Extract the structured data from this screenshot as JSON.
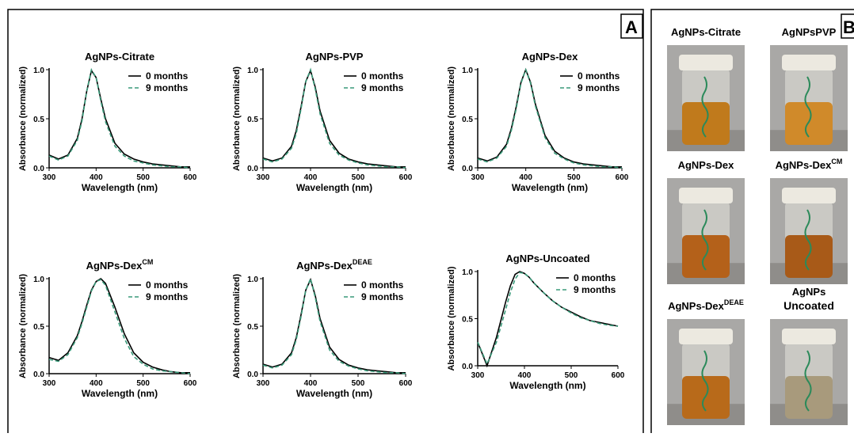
{
  "panel_a_label": "A",
  "panel_b_label": "B",
  "chart_data": [
    {
      "type": "line",
      "title": "AgNPs-Citrate",
      "x_label": "Wavelength (nm)",
      "y_label": "Absorbance (normalized)",
      "x": [
        300,
        320,
        340,
        360,
        370,
        380,
        390,
        400,
        410,
        420,
        440,
        460,
        480,
        500,
        520,
        540,
        560,
        580,
        600
      ],
      "series": [
        {
          "name": "0 months",
          "color": "#000000",
          "dashed": false,
          "values": [
            0.13,
            0.09,
            0.13,
            0.3,
            0.5,
            0.78,
            0.99,
            0.92,
            0.7,
            0.5,
            0.25,
            0.14,
            0.09,
            0.06,
            0.04,
            0.03,
            0.02,
            0.01,
            0.01
          ]
        },
        {
          "name": "9 months",
          "color": "#3a9a7a",
          "dashed": true,
          "values": [
            0.12,
            0.08,
            0.12,
            0.28,
            0.48,
            0.78,
            1.0,
            0.92,
            0.68,
            0.47,
            0.22,
            0.12,
            0.07,
            0.05,
            0.03,
            0.02,
            0.01,
            0.01,
            0.0
          ]
        }
      ],
      "xlim": [
        300,
        600
      ],
      "xticks": [
        300,
        400,
        500,
        600
      ],
      "ylim": [
        0,
        1
      ],
      "yticks": [
        {
          "value": 0,
          "label": "0.0"
        },
        {
          "value": 0.5,
          "label": "0.5"
        },
        {
          "value": 1,
          "label": "1.0"
        }
      ],
      "legend": "upper right"
    },
    {
      "type": "line",
      "title": "AgNPs-PVP",
      "x_label": "Wavelength (nm)",
      "y_label": "Absorbance (normalized)",
      "x": [
        300,
        320,
        340,
        360,
        370,
        380,
        390,
        400,
        410,
        420,
        440,
        460,
        480,
        500,
        520,
        540,
        560,
        580,
        600
      ],
      "series": [
        {
          "name": "0 months",
          "color": "#000000",
          "dashed": false,
          "values": [
            0.1,
            0.07,
            0.1,
            0.22,
            0.38,
            0.62,
            0.88,
            0.99,
            0.82,
            0.58,
            0.28,
            0.15,
            0.09,
            0.06,
            0.04,
            0.03,
            0.02,
            0.01,
            0.01
          ]
        },
        {
          "name": "9 months",
          "color": "#3a9a7a",
          "dashed": true,
          "values": [
            0.09,
            0.06,
            0.09,
            0.2,
            0.35,
            0.6,
            0.88,
            1.0,
            0.8,
            0.55,
            0.25,
            0.13,
            0.08,
            0.05,
            0.03,
            0.02,
            0.01,
            0.01,
            0.0
          ]
        }
      ],
      "xlim": [
        300,
        600
      ],
      "xticks": [
        300,
        400,
        500,
        600
      ],
      "ylim": [
        0,
        1
      ],
      "yticks": [
        {
          "value": 0,
          "label": "0.0"
        },
        {
          "value": 0.5,
          "label": "0.5"
        },
        {
          "value": 1,
          "label": "1.0"
        }
      ],
      "legend": "upper right"
    },
    {
      "type": "line",
      "title": "AgNPs-Dex",
      "x_label": "Wavelength (nm)",
      "y_label": "Absorbance (normalized)",
      "x": [
        300,
        320,
        340,
        360,
        370,
        380,
        390,
        400,
        410,
        420,
        440,
        460,
        480,
        500,
        520,
        540,
        560,
        580,
        600
      ],
      "series": [
        {
          "name": "0 months",
          "color": "#000000",
          "dashed": false,
          "values": [
            0.1,
            0.07,
            0.11,
            0.24,
            0.4,
            0.62,
            0.87,
            1.0,
            0.87,
            0.65,
            0.33,
            0.17,
            0.1,
            0.06,
            0.04,
            0.03,
            0.02,
            0.01,
            0.01
          ]
        },
        {
          "name": "9 months",
          "color": "#3a9a7a",
          "dashed": true,
          "values": [
            0.09,
            0.06,
            0.1,
            0.22,
            0.38,
            0.6,
            0.86,
            1.0,
            0.86,
            0.63,
            0.31,
            0.15,
            0.09,
            0.05,
            0.03,
            0.02,
            0.01,
            0.01,
            0.0
          ]
        }
      ],
      "xlim": [
        300,
        600
      ],
      "xticks": [
        300,
        400,
        500,
        600
      ],
      "ylim": [
        0,
        1
      ],
      "yticks": [
        {
          "value": 0,
          "label": "0.0"
        },
        {
          "value": 0.5,
          "label": "0.5"
        },
        {
          "value": 1,
          "label": "1.0"
        }
      ],
      "legend": "upper right"
    },
    {
      "type": "line",
      "title": "AgNPs-Dex",
      "title_superscript": "CM",
      "x_label": "Wavelength (nm)",
      "y_label": "Absorbance (normalized)",
      "x": [
        300,
        320,
        340,
        360,
        370,
        380,
        390,
        400,
        410,
        420,
        440,
        460,
        480,
        500,
        520,
        540,
        560,
        580,
        600
      ],
      "series": [
        {
          "name": "0 months",
          "color": "#000000",
          "dashed": false,
          "values": [
            0.17,
            0.14,
            0.22,
            0.4,
            0.55,
            0.72,
            0.88,
            0.97,
            1.0,
            0.95,
            0.7,
            0.42,
            0.22,
            0.12,
            0.07,
            0.04,
            0.02,
            0.01,
            0.01
          ]
        },
        {
          "name": "9 months",
          "color": "#3a9a7a",
          "dashed": true,
          "values": [
            0.15,
            0.13,
            0.2,
            0.38,
            0.53,
            0.7,
            0.87,
            0.97,
            0.99,
            0.93,
            0.65,
            0.37,
            0.18,
            0.1,
            0.05,
            0.03,
            0.02,
            0.01,
            0.0
          ]
        }
      ],
      "xlim": [
        300,
        600
      ],
      "xticks": [
        300,
        400,
        500,
        600
      ],
      "ylim": [
        0,
        1
      ],
      "yticks": [
        {
          "value": 0,
          "label": "0.0"
        },
        {
          "value": 0.5,
          "label": "0.5"
        },
        {
          "value": 1,
          "label": "1.0"
        }
      ],
      "legend": "upper right"
    },
    {
      "type": "line",
      "title": "AgNPs-Dex",
      "title_superscript": "DEAE",
      "x_label": "Wavelength (nm)",
      "y_label": "Absorbance (normalized)",
      "x": [
        300,
        320,
        340,
        360,
        370,
        380,
        390,
        400,
        410,
        420,
        440,
        460,
        480,
        500,
        520,
        540,
        560,
        580,
        600
      ],
      "series": [
        {
          "name": "0 months",
          "color": "#000000",
          "dashed": false,
          "values": [
            0.1,
            0.07,
            0.1,
            0.22,
            0.38,
            0.62,
            0.88,
            0.99,
            0.82,
            0.58,
            0.28,
            0.15,
            0.09,
            0.06,
            0.04,
            0.03,
            0.02,
            0.01,
            0.01
          ]
        },
        {
          "name": "9 months",
          "color": "#3a9a7a",
          "dashed": true,
          "values": [
            0.09,
            0.06,
            0.09,
            0.2,
            0.36,
            0.6,
            0.88,
            1.0,
            0.8,
            0.55,
            0.25,
            0.13,
            0.08,
            0.05,
            0.03,
            0.02,
            0.01,
            0.01,
            0.0
          ]
        }
      ],
      "xlim": [
        300,
        600
      ],
      "xticks": [
        300,
        400,
        500,
        600
      ],
      "ylim": [
        0,
        1
      ],
      "yticks": [
        {
          "value": 0,
          "label": "0.0"
        },
        {
          "value": 0.5,
          "label": "0.5"
        },
        {
          "value": 1,
          "label": "1.0"
        }
      ],
      "legend": "upper right"
    },
    {
      "type": "line",
      "title": "AgNPs-Uncoated",
      "x_label": "Wavelength (nm)",
      "y_label": "Absorbance (normalized)",
      "x": [
        300,
        320,
        340,
        360,
        370,
        380,
        390,
        400,
        410,
        420,
        440,
        460,
        480,
        500,
        520,
        540,
        560,
        580,
        600
      ],
      "series": [
        {
          "name": "0 months",
          "color": "#000000",
          "dashed": false,
          "values": [
            0.25,
            0.0,
            0.3,
            0.68,
            0.85,
            0.97,
            1.0,
            0.98,
            0.94,
            0.88,
            0.78,
            0.69,
            0.62,
            0.57,
            0.52,
            0.48,
            0.46,
            0.44,
            0.42
          ]
        },
        {
          "name": "9 months",
          "color": "#3a9a7a",
          "dashed": true,
          "values": [
            0.25,
            0.02,
            0.25,
            0.6,
            0.78,
            0.92,
            0.99,
            0.98,
            0.94,
            0.88,
            0.78,
            0.69,
            0.62,
            0.56,
            0.51,
            0.48,
            0.45,
            0.43,
            0.42
          ]
        }
      ],
      "xlim": [
        300,
        600
      ],
      "xticks": [
        300,
        400,
        500,
        600
      ],
      "ylim": [
        0,
        1
      ],
      "yticks": [
        {
          "value": 0,
          "label": "0.0"
        },
        {
          "value": 0.5,
          "label": "0.5"
        },
        {
          "value": 1,
          "label": "1.0"
        }
      ],
      "legend": "upper right"
    }
  ],
  "photos": [
    {
      "label": "AgNPs-Citrate",
      "liquid": "#c07a1c"
    },
    {
      "label": "AgNPsPVP",
      "liquid": "#d08a2a"
    },
    {
      "label": "AgNPs-Dex",
      "liquid": "#b4611a"
    },
    {
      "label": "AgNPs-Dex",
      "superscript": "CM",
      "liquid": "#a85a18"
    },
    {
      "label": "AgNPs-Dex",
      "superscript": "DEAE",
      "liquid": "#b86a1a"
    },
    {
      "label": "AgNPs",
      "label_line2": "Uncoated",
      "liquid": "#a89a7c"
    }
  ]
}
